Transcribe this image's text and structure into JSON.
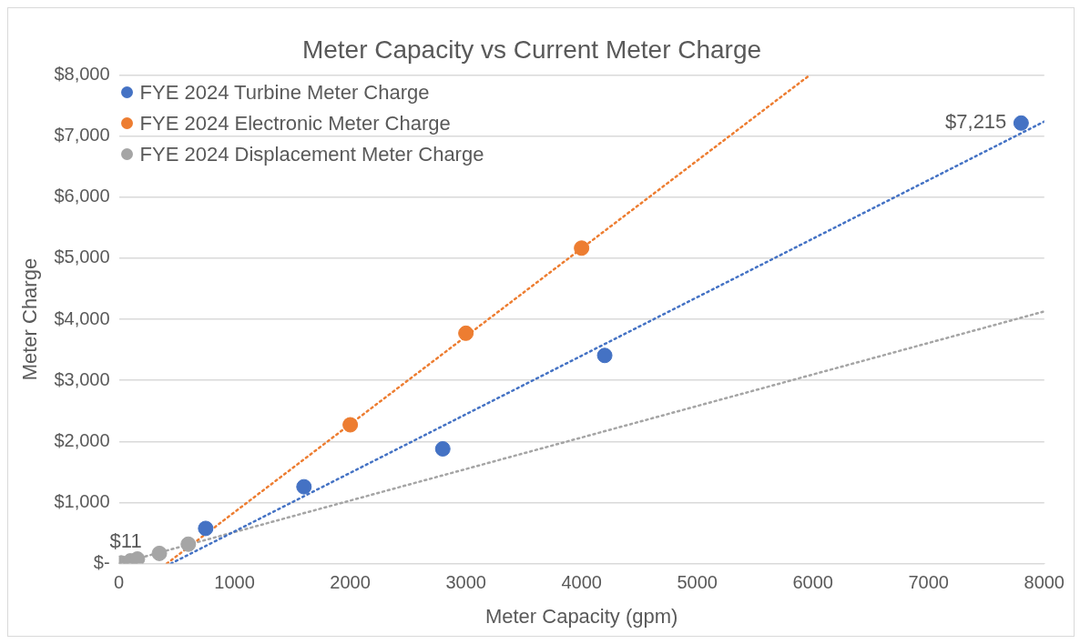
{
  "chart_data": {
    "type": "scatter",
    "title": "Meter Capacity vs Current Meter Charge",
    "xlabel": "Meter Capacity (gpm)",
    "ylabel": "Meter Charge",
    "series": [
      {
        "name": "FYE 2024 Turbine Meter Charge",
        "color": "#4472c4",
        "x": [
          750,
          1600,
          2800,
          4200,
          7800
        ],
        "values": [
          576,
          1258,
          1879,
          3409,
          7215
        ],
        "value_labels": [
          null,
          null,
          null,
          null,
          "$7,215"
        ]
      },
      {
        "name": "FYE 2024 Electronic Meter Charge",
        "color": "#ed7d31",
        "x": [
          2000,
          3000,
          4000
        ],
        "values": [
          2273,
          3773,
          5167
        ]
      },
      {
        "name": "FYE 2024 Displacement Meter Charge",
        "color": "#a5a5a5",
        "x": [
          20,
          100,
          160,
          350,
          600
        ],
        "values": [
          11,
          45,
          75,
          167,
          318
        ],
        "value_labels": [
          "$11",
          null,
          null,
          null,
          null
        ]
      },
      {
        "type": "line",
        "color": "#4472c4",
        "line_style": "dotted",
        "marker": "none",
        "x": [
          450,
          8000
        ],
        "values": [
          0,
          7240
        ]
      },
      {
        "type": "line",
        "color": "#ed7d31",
        "line_style": "dotted",
        "marker": "none",
        "x": [
          414,
          5972
        ],
        "values": [
          0,
          8000
        ]
      },
      {
        "type": "line",
        "color": "#a5a5a5",
        "line_style": "dotted",
        "marker": "none",
        "x": [
          0,
          8000
        ],
        "values": [
          0,
          4130
        ]
      }
    ],
    "marker": "circle",
    "legend": "top left",
    "grid": "y",
    "xlim": [
      0,
      8000
    ],
    "xticks": [
      0,
      1000,
      2000,
      3000,
      4000,
      5000,
      6000,
      7000,
      8000
    ],
    "ylim": [
      0,
      8000
    ],
    "yticks": [
      {
        "value": 0,
        "label": "$-"
      },
      {
        "value": 1000,
        "label": "$1,000"
      },
      {
        "value": 2000,
        "label": "$2,000"
      },
      {
        "value": 3000,
        "label": "$3,000"
      },
      {
        "value": 4000,
        "label": "$4,000"
      },
      {
        "value": 5000,
        "label": "$5,000"
      },
      {
        "value": 6000,
        "label": "$6,000"
      },
      {
        "value": 7000,
        "label": "$7,000"
      },
      {
        "value": 8000,
        "label": "$8,000"
      }
    ]
  }
}
